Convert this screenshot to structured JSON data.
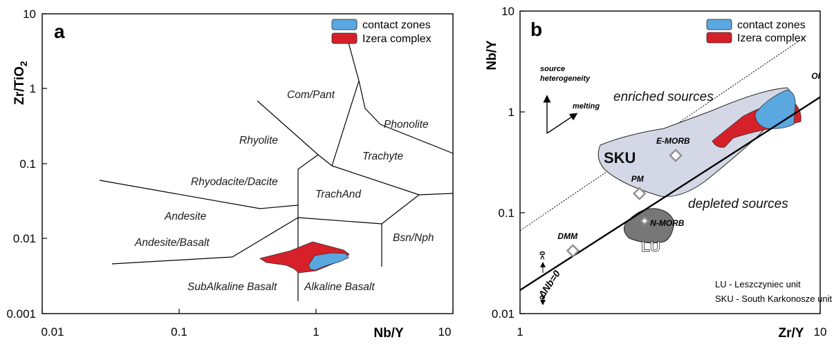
{
  "chart_data": [
    {
      "type": "scatter",
      "panel_label": "a",
      "xlabel": "Nb/Y",
      "ylabel": "Zr/TiO",
      "ylabel_sub": "2",
      "x_scale": "log",
      "y_scale": "log",
      "xlim": [
        0.01,
        10
      ],
      "ylim": [
        0.001,
        10
      ],
      "x_ticks": [
        "0.01",
        "0.1",
        "1",
        "10"
      ],
      "y_ticks": [
        "10",
        "1",
        "0.1",
        "0.01",
        "0.001"
      ],
      "legend": [
        {
          "label": "contact zones",
          "color": "#5ba7e0"
        },
        {
          "label": "Izera complex",
          "color": "#d6212a"
        }
      ],
      "legend_position": "top-right",
      "fields": [
        "Com/Pant",
        "Phonolite",
        "Rhyolite",
        "Trachyte",
        "Rhyodacite/Dacite",
        "TrachAnd",
        "Andesite",
        "Andesite/Basalt",
        "Bsn/Nph",
        "SubAlkaline Basalt",
        "Alkaline Basalt"
      ],
      "regions": [
        {
          "name": "Izera complex",
          "color": "#d6212a",
          "points": [
            [
              0.55,
              0.0058
            ],
            [
              0.78,
              0.0078
            ],
            [
              0.95,
              0.0092
            ],
            [
              1.3,
              0.0072
            ],
            [
              1.55,
              0.006
            ],
            [
              1.45,
              0.0052
            ],
            [
              1.05,
              0.0042
            ],
            [
              0.9,
              0.0035
            ],
            [
              0.8,
              0.0036
            ],
            [
              0.72,
              0.0047
            ],
            [
              0.56,
              0.0052
            ]
          ]
        },
        {
          "name": "contact zones",
          "color": "#5ba7e0",
          "points": [
            [
              0.82,
              0.005
            ],
            [
              0.92,
              0.0067
            ],
            [
              1.1,
              0.0068
            ],
            [
              1.35,
              0.0066
            ],
            [
              1.55,
              0.006
            ],
            [
              1.3,
              0.0052
            ],
            [
              1.05,
              0.0046
            ],
            [
              0.9,
              0.0041
            ],
            [
              0.84,
              0.0044
            ]
          ]
        }
      ]
    },
    {
      "type": "scatter",
      "panel_label": "b",
      "xlabel": "Zr/Y",
      "ylabel": "Nb/Y",
      "x_scale": "log",
      "y_scale": "log",
      "xlim": [
        1,
        10
      ],
      "ylim": [
        0.01,
        10
      ],
      "x_ticks": [
        "1",
        "10"
      ],
      "y_ticks": [
        "10",
        "1",
        "0.1",
        "0.01"
      ],
      "legend": [
        {
          "label": "contact zones",
          "color": "#5ba7e0"
        },
        {
          "label": "Izera complex",
          "color": "#d6212a"
        }
      ],
      "legend_position": "top-right",
      "reference_points": [
        {
          "label": "OIB",
          "x": 10.5,
          "y": 1.65
        },
        {
          "label": "E-MORB",
          "x": 3.3,
          "y": 0.37
        },
        {
          "label": "PM",
          "x": 2.5,
          "y": 0.155
        },
        {
          "label": "N-MORB",
          "x": 2.6,
          "y": 0.083
        },
        {
          "label": "DMM",
          "x": 1.5,
          "y": 0.042
        }
      ],
      "annotations": {
        "enriched": "enriched sources",
        "depleted": "depleted sources",
        "sku": "SKU",
        "lu": "LU",
        "source_heterogeneity": "source heterogeneity",
        "melting": "melting",
        "delta_nb": "ΔNb=0",
        "gt0": ">0",
        "lt0": "<0",
        "note1": "LU - Leszczyniec unit",
        "note2": "SKU - South Karkonosze unit"
      }
    }
  ]
}
